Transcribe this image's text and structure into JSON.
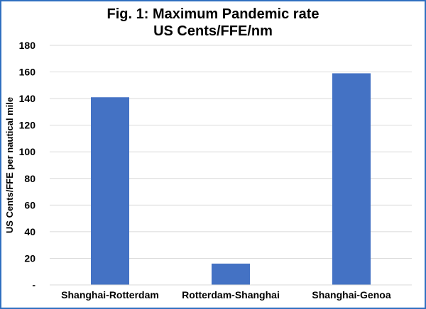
{
  "chart_data": {
    "type": "bar",
    "title": [
      "Fig. 1: Maximum Pandemic rate",
      "US Cents/FFE/nm"
    ],
    "ylabel": "US Cents/FFE per nautical mile",
    "xlabel": "",
    "categories": [
      "Shanghai-Rotterdam",
      "Rotterdam-Shanghai",
      "Shanghai-Genoa"
    ],
    "values": [
      141,
      16,
      159
    ],
    "ylim": [
      0,
      180
    ],
    "yticks": [
      0,
      20,
      40,
      60,
      80,
      100,
      120,
      140,
      160,
      180
    ],
    "ytick_labels": [
      "-",
      "20",
      "40",
      "60",
      "80",
      "100",
      "120",
      "140",
      "160",
      "180"
    ],
    "grid": "horizontal",
    "bar_color": "#4472c4",
    "grid_color": "#d9d9d9",
    "border_color": "#2f6fc0"
  }
}
